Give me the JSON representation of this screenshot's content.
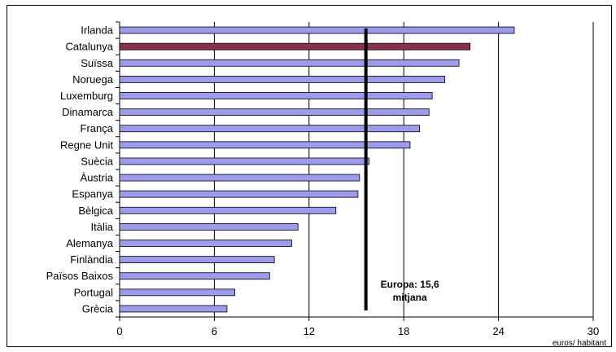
{
  "chart_data": {
    "type": "bar",
    "orientation": "horizontal",
    "categories": [
      "Irlanda",
      "Catalunya",
      "Suïssa",
      "Noruega",
      "Luxemburg",
      "Dinamarca",
      "França",
      "Regne Unit",
      "Suècia",
      "Àustria",
      "Espanya",
      "Bèlgica",
      "Itàlia",
      "Alemanya",
      "Finlàndia",
      "Països Baixos",
      "Portugal",
      "Grècia"
    ],
    "values": [
      25.0,
      22.2,
      21.5,
      20.6,
      19.8,
      19.6,
      19.0,
      18.4,
      15.8,
      15.2,
      15.1,
      13.7,
      11.3,
      10.9,
      9.8,
      9.5,
      7.3,
      6.8
    ],
    "highlight_category": "Catalunya",
    "colors": {
      "bar": "#9b9bef",
      "highlight": "#8b2f4a",
      "average_line": "#000000",
      "grid": "#000000"
    },
    "xlim": [
      0,
      30
    ],
    "x_ticks": [
      0,
      6,
      12,
      18,
      24,
      30
    ],
    "x_tick_labels": [
      "0",
      "6",
      "12",
      "18",
      "24",
      "30"
    ],
    "xlabel": "euros/ habitant",
    "ylabel": "",
    "title": "",
    "grid": "vertical",
    "reference_line": {
      "value": 15.6,
      "label_line1": "Europa: 15,6",
      "label_line2": "mitjana"
    }
  }
}
